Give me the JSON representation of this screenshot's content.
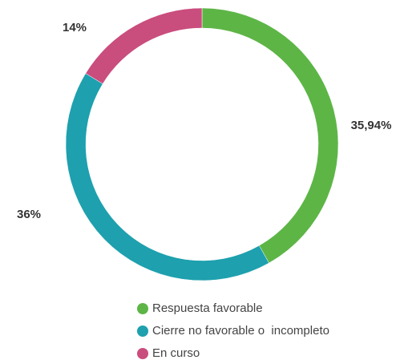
{
  "chart_data": {
    "type": "donut",
    "categories": [
      "Respuesta favorable",
      "Cierre no favorable o  incompleto",
      "En curso"
    ],
    "values": [
      35.94,
      36,
      14
    ],
    "value_labels": [
      "35,94%",
      "36%",
      "14%"
    ],
    "colors": [
      "#5db546",
      "#1ea0ae",
      "#c94d7d"
    ],
    "legend": "bottom"
  }
}
